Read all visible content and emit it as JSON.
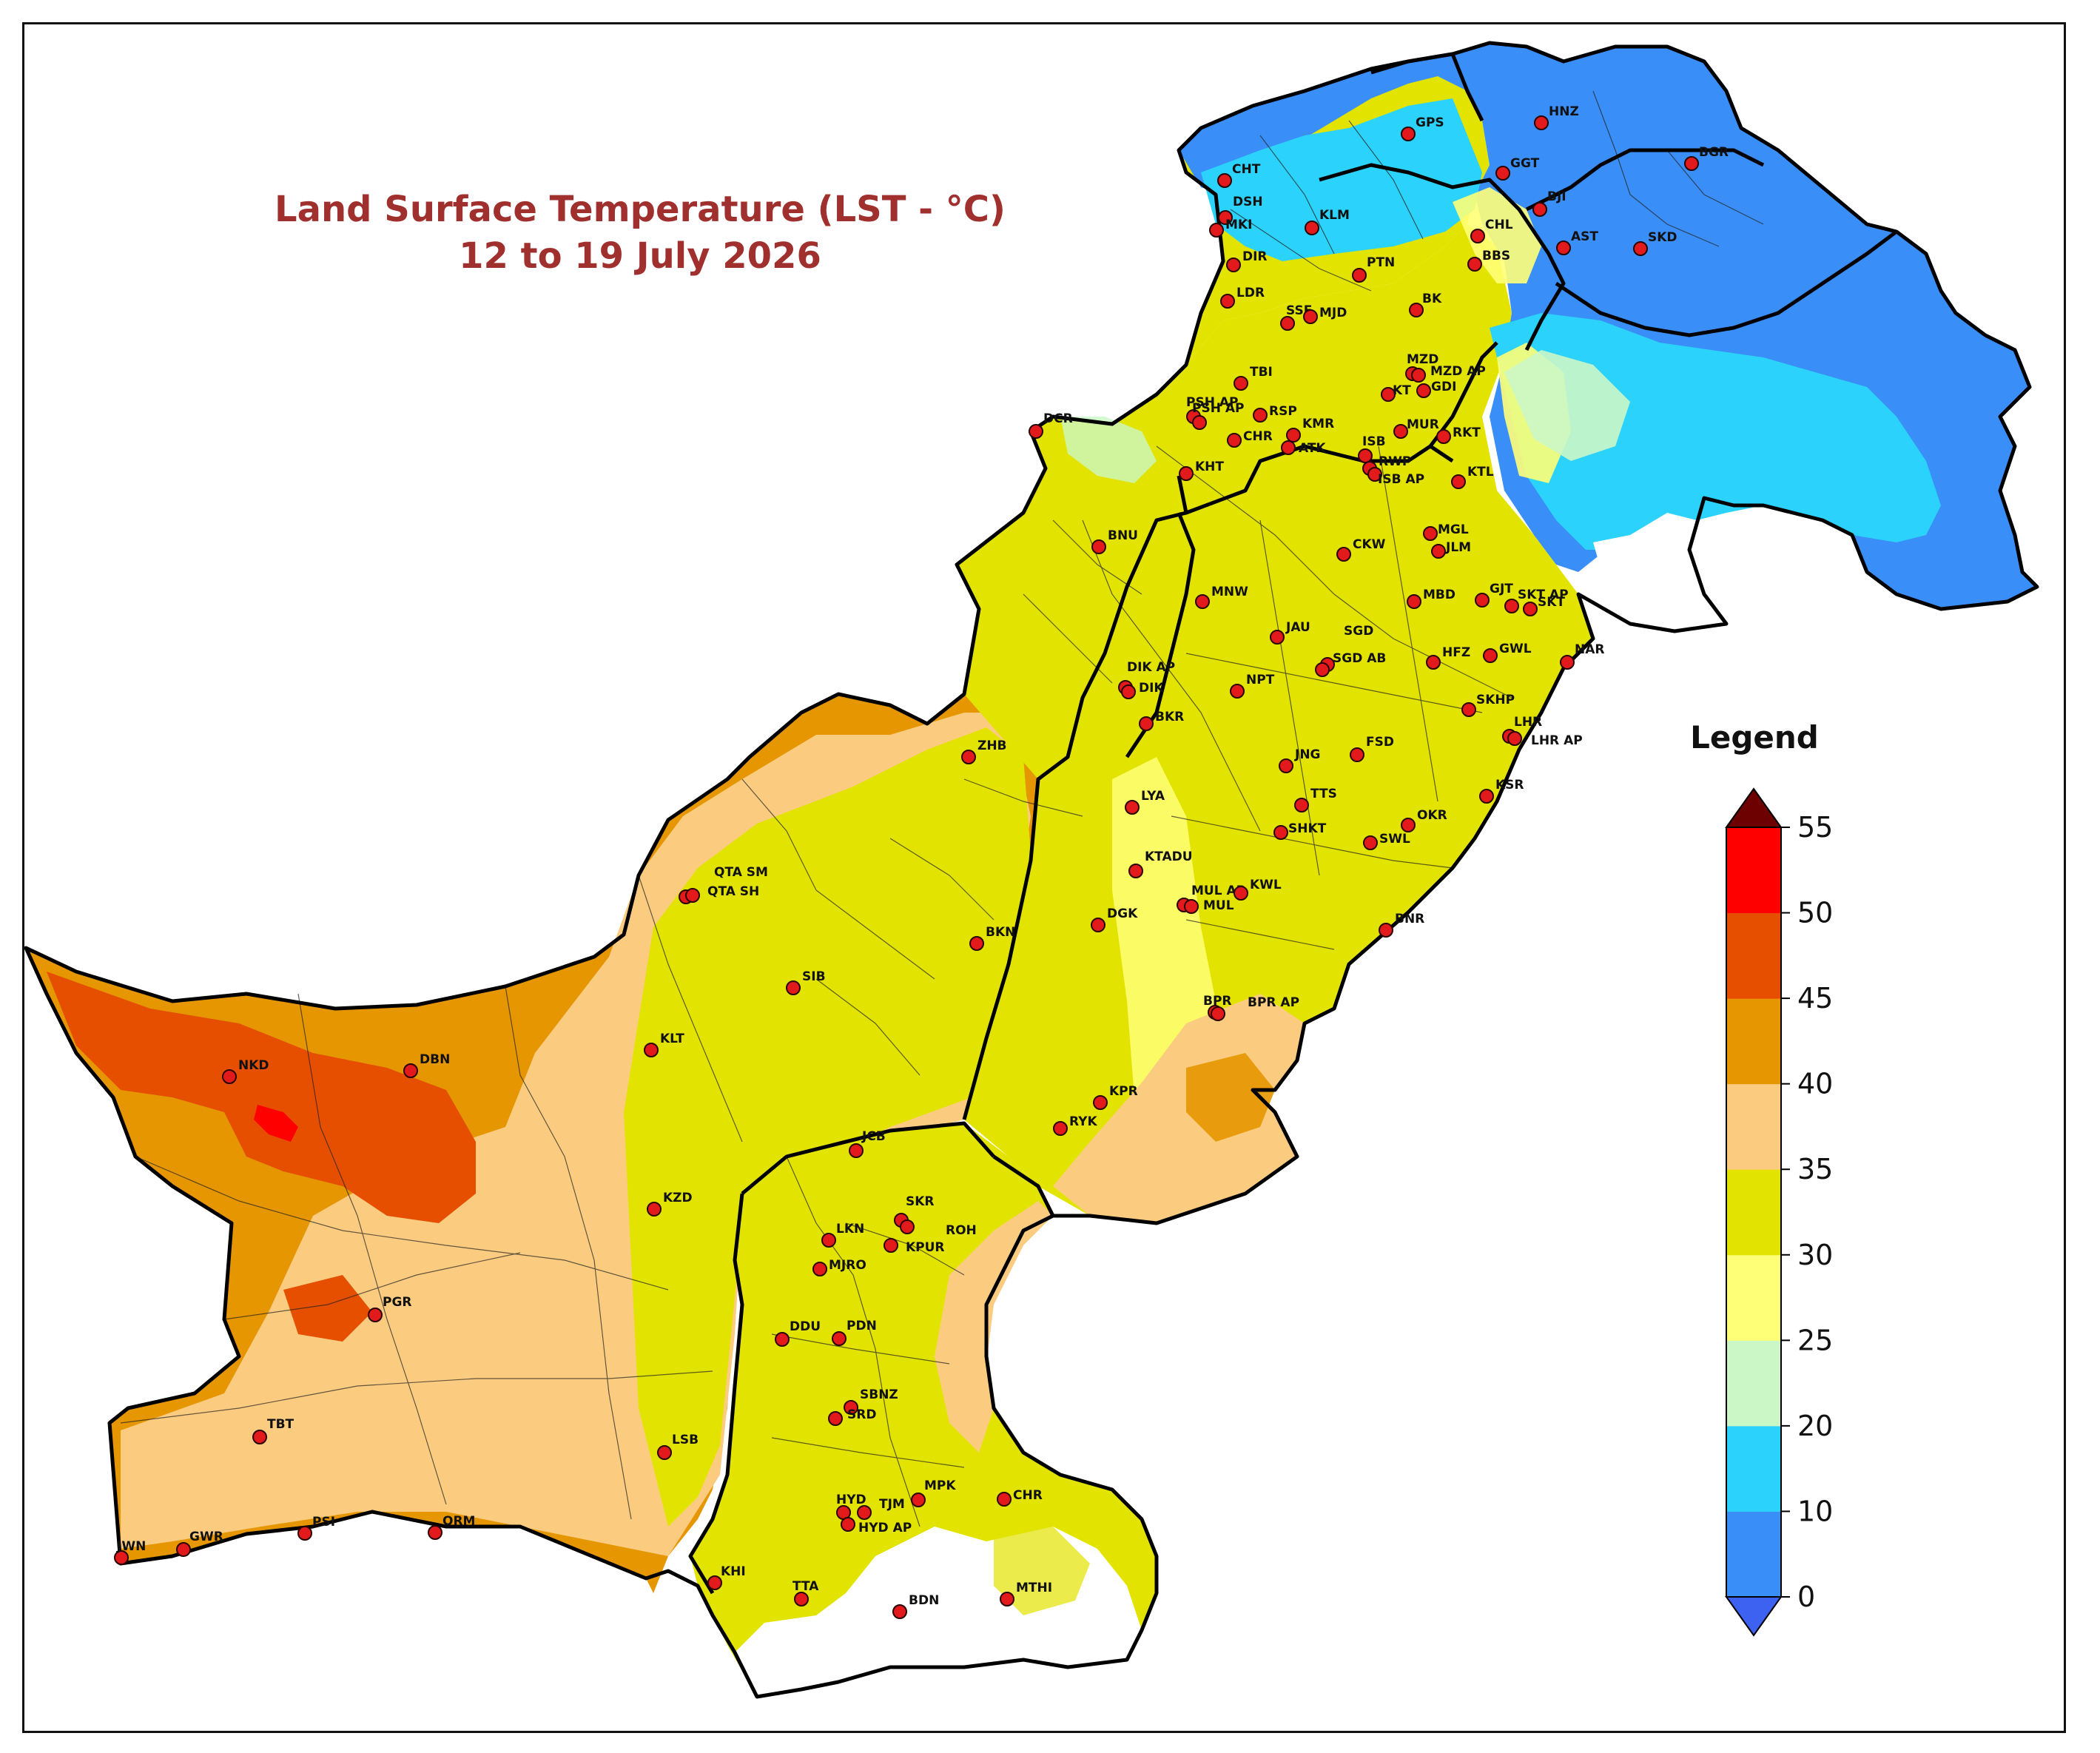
{
  "title": {
    "line1": "Land Surface Temperature (LST - °C)",
    "line2": "12 to 19 July 2026"
  },
  "legend": {
    "title": "Legend",
    "ticks": [
      "0",
      "10",
      "20",
      "25",
      "30",
      "35",
      "40",
      "45",
      "50",
      "55"
    ],
    "bins": [
      {
        "range": "0-10",
        "color": "#3a8ef7"
      },
      {
        "range": "10-20",
        "color": "#2bd2fb"
      },
      {
        "range": "20-25",
        "color": "#cbf7c6"
      },
      {
        "range": "25-30",
        "color": "#ffff77"
      },
      {
        "range": "30-35",
        "color": "#e3e300"
      },
      {
        "range": "35-40",
        "color": "#fbcc80"
      },
      {
        "range": "40-45",
        "color": "#e59600"
      },
      {
        "range": "45-50",
        "color": "#e64f00"
      },
      {
        "range": "50-55",
        "color": "#ff0000"
      }
    ],
    "under_color": "#3d62f2",
    "over_color": "#6d0000"
  },
  "stations": [
    "HNZ",
    "BGR",
    "GPS",
    "CHT",
    "GGT",
    "DSH",
    "MKI",
    "BJI",
    "KLM",
    "CHL",
    "AST",
    "SKD",
    "DIR",
    "BBS",
    "PTN",
    "LDR",
    "SSF",
    "MJD",
    "BK",
    "MZD",
    "MZD AP",
    "TBI",
    "PSH AP",
    "RSP",
    "GDI",
    "KT",
    "DCR",
    "PSH AP",
    "KMR",
    "RKT",
    "MUR",
    "CHR",
    "ATK",
    "ISB",
    "RWP",
    "ISB AP",
    "KHT",
    "KTL",
    "BNU",
    "MGL",
    "CKW",
    "JLM",
    "SKT AP",
    "GJT",
    "MNW",
    "MBD",
    "SKT",
    "JAU",
    "SGD",
    "SGD AB",
    "HFZ",
    "GWL",
    "NAR",
    "DIK AP",
    "DIK",
    "NPT",
    "SKHP",
    "LHR",
    "BKR",
    "LHR AP",
    "ZHB",
    "JNG",
    "FSD",
    "TTS",
    "KSR",
    "LYA",
    "SHKT",
    "OKR",
    "SWL",
    "QTA SM",
    "QTA SH",
    "KTADU",
    "MUL AP",
    "KWL",
    "MUL",
    "BKN",
    "DGK",
    "BNR",
    "SIB",
    "BPR",
    "BPR AP",
    "KLT",
    "NKD",
    "DBN",
    "KPR",
    "RYK",
    "JCB",
    "KZD",
    "SKR",
    "ROH",
    "LKN",
    "KPUR",
    "MJRO",
    "PGR",
    "DDU",
    "PDN",
    "SBNZ",
    "SRD",
    "TBT",
    "LSB",
    "CHR",
    "MPK",
    "HYD",
    "TJM",
    "HYD AP",
    "PSI",
    "ORM",
    "JWN",
    "GWR",
    "KHI",
    "TTA",
    "BDN",
    "MTHI"
  ]
}
